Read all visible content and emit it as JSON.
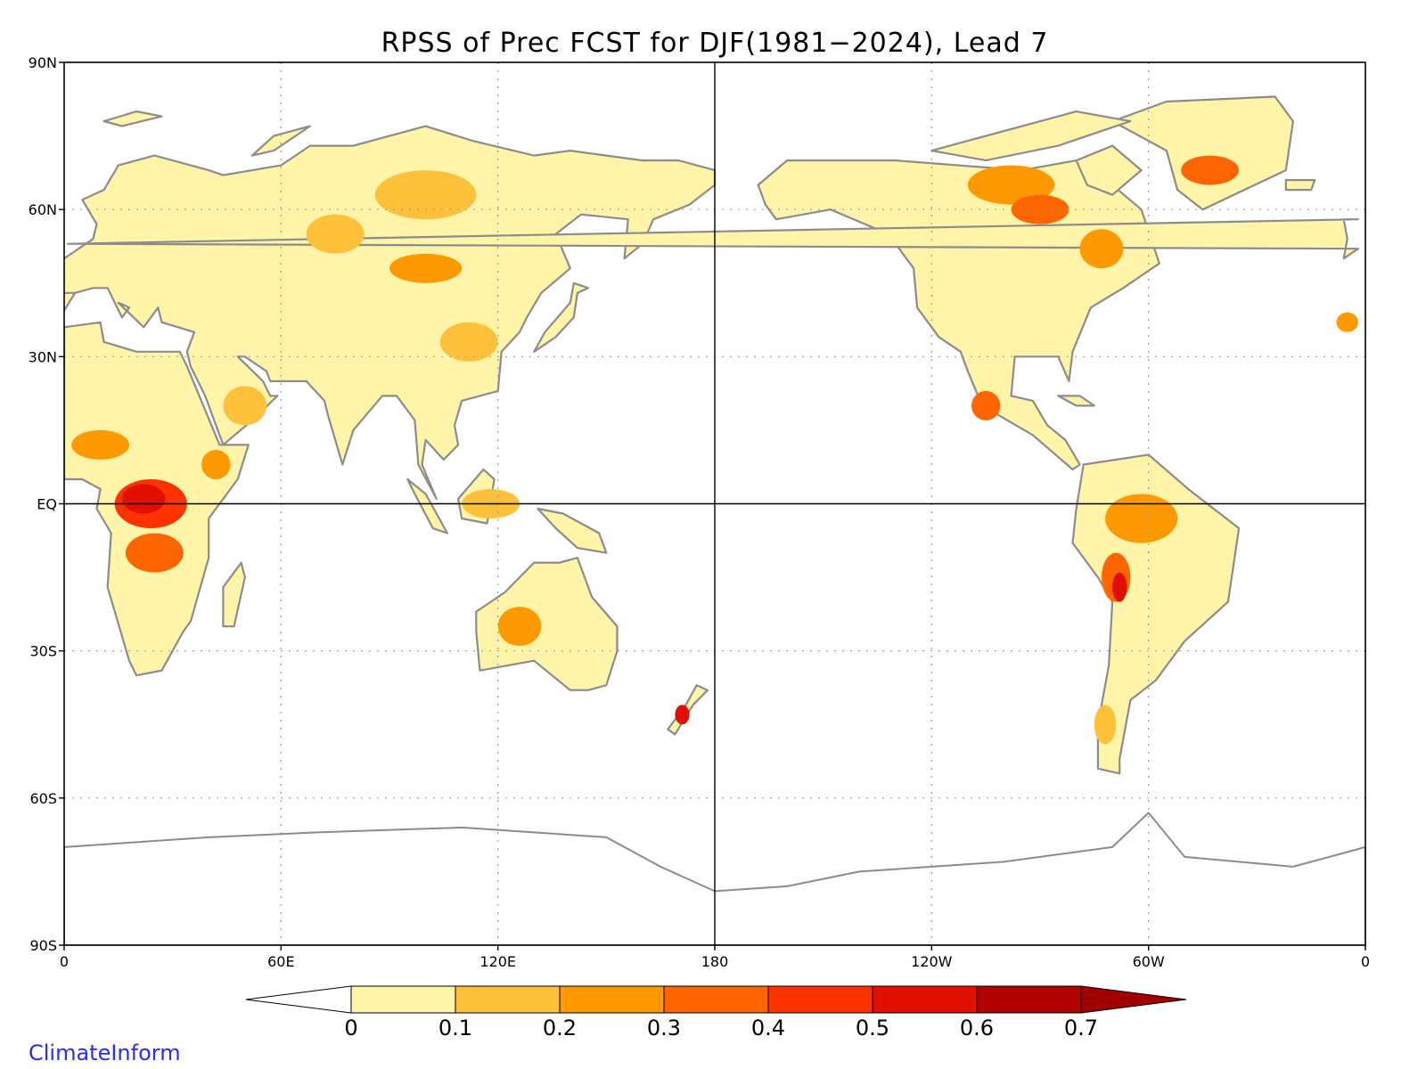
{
  "map": {
    "title": "RPSS of Prec FCST for DJF(1981−2024), Lead 7",
    "projection": "cylindrical equidistant, 0° to 360° longitude (Pacific-centered)",
    "lon_range": [
      0,
      360
    ],
    "lat_range": [
      -90,
      90
    ],
    "lon_ticks": [
      {
        "value": 0,
        "label": "0"
      },
      {
        "value": 60,
        "label": "60E"
      },
      {
        "value": 120,
        "label": "120E"
      },
      {
        "value": 180,
        "label": "180"
      },
      {
        "value": 240,
        "label": "120W"
      },
      {
        "value": 300,
        "label": "60W"
      },
      {
        "value": 360,
        "label": "0"
      }
    ],
    "lat_ticks": [
      {
        "value": 90,
        "label": "90N"
      },
      {
        "value": 60,
        "label": "60N"
      },
      {
        "value": 30,
        "label": "30N"
      },
      {
        "value": 0,
        "label": "EQ"
      },
      {
        "value": -30,
        "label": "30S"
      },
      {
        "value": -60,
        "label": "60S"
      },
      {
        "value": -90,
        "label": "90S"
      }
    ],
    "gridlines": "dotted at 60E, 120E, 120W, 60W and 60N, 30N, 30S, 60S; solid at equator and 180",
    "land_outline_color": "#8c8c8c",
    "background_color": "#ffffff"
  },
  "colorbar": {
    "levels": [
      "0",
      "0.1",
      "0.2",
      "0.3",
      "0.4",
      "0.5",
      "0.6",
      "0.7"
    ],
    "under_color": "#ffffff",
    "colors": [
      "#fff4a8",
      "#ffc13c",
      "#ff9900",
      "#ff6600",
      "#ff3300",
      "#e01000",
      "#b00000"
    ],
    "over_color": "#a00000"
  },
  "branding": {
    "text": "ClimateInform",
    "color": "#2a2aff"
  }
}
